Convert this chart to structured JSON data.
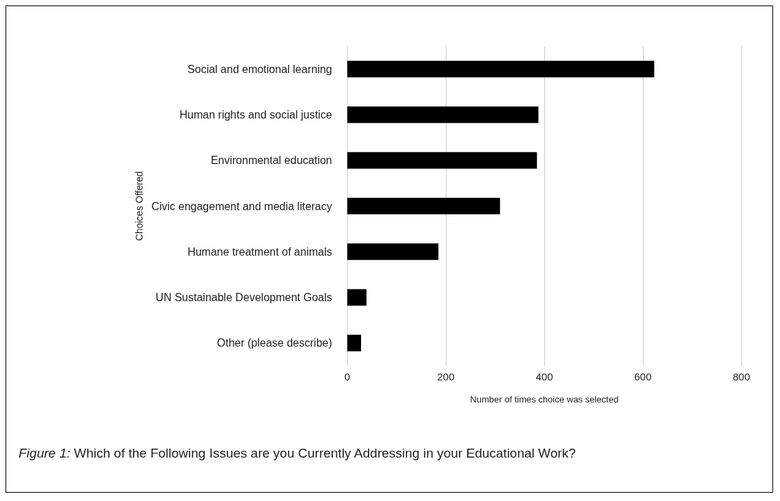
{
  "chart_data": {
    "type": "bar",
    "orientation": "horizontal",
    "categories": [
      "Social and emotional learning",
      "Human rights and social justice",
      "Environmental education",
      "Civic engagement and media literacy",
      "Humane treatment of animals",
      "UN Sustainable Development Goals",
      "Other (please describe)"
    ],
    "values": [
      623,
      388,
      385,
      310,
      185,
      39,
      28
    ],
    "color": "#000000",
    "xlim": [
      0,
      800
    ],
    "xticks": [
      0,
      200,
      400,
      600,
      800
    ],
    "grid": "x",
    "xlabel": "Number of times choice was selected",
    "ylabel": "Choices Offered",
    "annotations": [
      "Figure 1: Which of the Following Issues are you Currently Addressing in your Educational Work?"
    ]
  }
}
